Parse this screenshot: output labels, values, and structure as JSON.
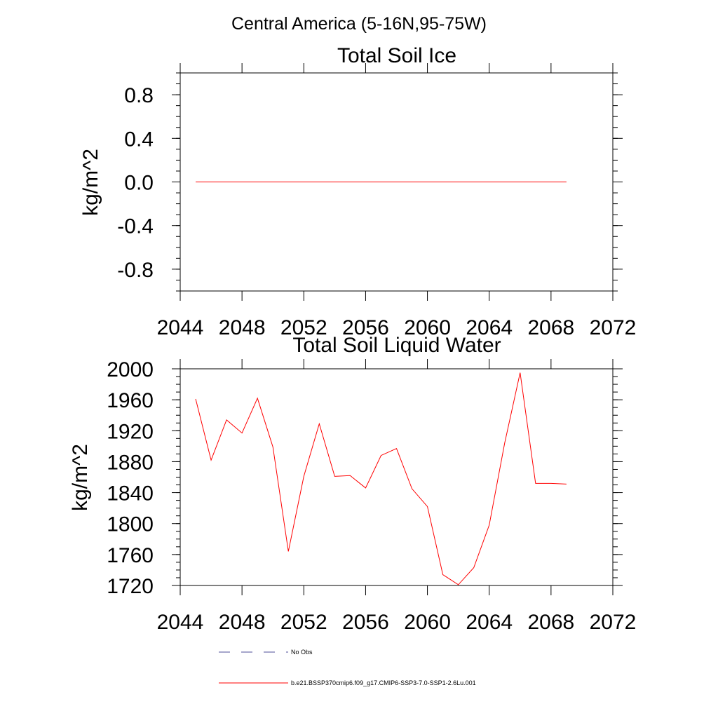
{
  "suptitle": "Central America (5-16N,95-75W)",
  "legend": {
    "entries": [
      {
        "label": "No Obs",
        "color": "#4d4d99",
        "style": "dashed"
      },
      {
        "label": "b.e21.BSSP370cmip6.f09_g17.CMIP6-SSP3-7.0-SSP1-2.6Lu.001",
        "color": "#ff0000",
        "style": "solid"
      }
    ]
  },
  "chart_data": [
    {
      "type": "line",
      "title": "Total Soil Ice",
      "xlabel": "",
      "ylabel": "kg/m^2",
      "xlim": [
        2044,
        2072
      ],
      "ylim": [
        -1.0,
        1.0
      ],
      "xticks": [
        "2044",
        "2048",
        "2052",
        "2056",
        "2060",
        "2064",
        "2068",
        "2072"
      ],
      "yticks": [
        "-0.8",
        "-0.4",
        "0.0",
        "0.4",
        "0.8"
      ],
      "grid": false,
      "series": [
        {
          "name": "b.e21.BSSP370cmip6.f09_g17.CMIP6-SSP3-7.0-SSP1-2.6Lu.001",
          "color": "#ff0000",
          "x": [
            2045,
            2046,
            2047,
            2048,
            2049,
            2050,
            2051,
            2052,
            2053,
            2054,
            2055,
            2056,
            2057,
            2058,
            2059,
            2060,
            2061,
            2062,
            2063,
            2064,
            2065,
            2066,
            2067,
            2068,
            2069
          ],
          "y": [
            0,
            0,
            0,
            0,
            0,
            0,
            0,
            0,
            0,
            0,
            0,
            0,
            0,
            0,
            0,
            0,
            0,
            0,
            0,
            0,
            0,
            0,
            0,
            0,
            0
          ]
        }
      ]
    },
    {
      "type": "line",
      "title": "Total Soil Liquid Water",
      "xlabel": "",
      "ylabel": "kg/m^2",
      "xlim": [
        2044,
        2072
      ],
      "ylim": [
        1720,
        2000
      ],
      "xticks": [
        "2044",
        "2048",
        "2052",
        "2056",
        "2060",
        "2064",
        "2068",
        "2072"
      ],
      "yticks": [
        "1720",
        "1760",
        "1800",
        "1840",
        "1880",
        "1920",
        "1960",
        "2000"
      ],
      "grid": false,
      "series": [
        {
          "name": "b.e21.BSSP370cmip6.f09_g17.CMIP6-SSP3-7.0-SSP1-2.6Lu.001",
          "color": "#ff0000",
          "x": [
            2045,
            2046,
            2047,
            2048,
            2049,
            2050,
            2051,
            2052,
            2053,
            2054,
            2055,
            2056,
            2057,
            2058,
            2059,
            2060,
            2061,
            2062,
            2063,
            2064,
            2065,
            2066,
            2067,
            2068,
            2069
          ],
          "y": [
            1961,
            1882,
            1934,
            1917,
            1962,
            1899,
            1764,
            1861,
            1929,
            1861,
            1862,
            1846,
            1888,
            1897,
            1845,
            1822,
            1734,
            1721,
            1743,
            1798,
            1904,
            1995,
            1852,
            1852,
            1851
          ]
        }
      ]
    }
  ]
}
